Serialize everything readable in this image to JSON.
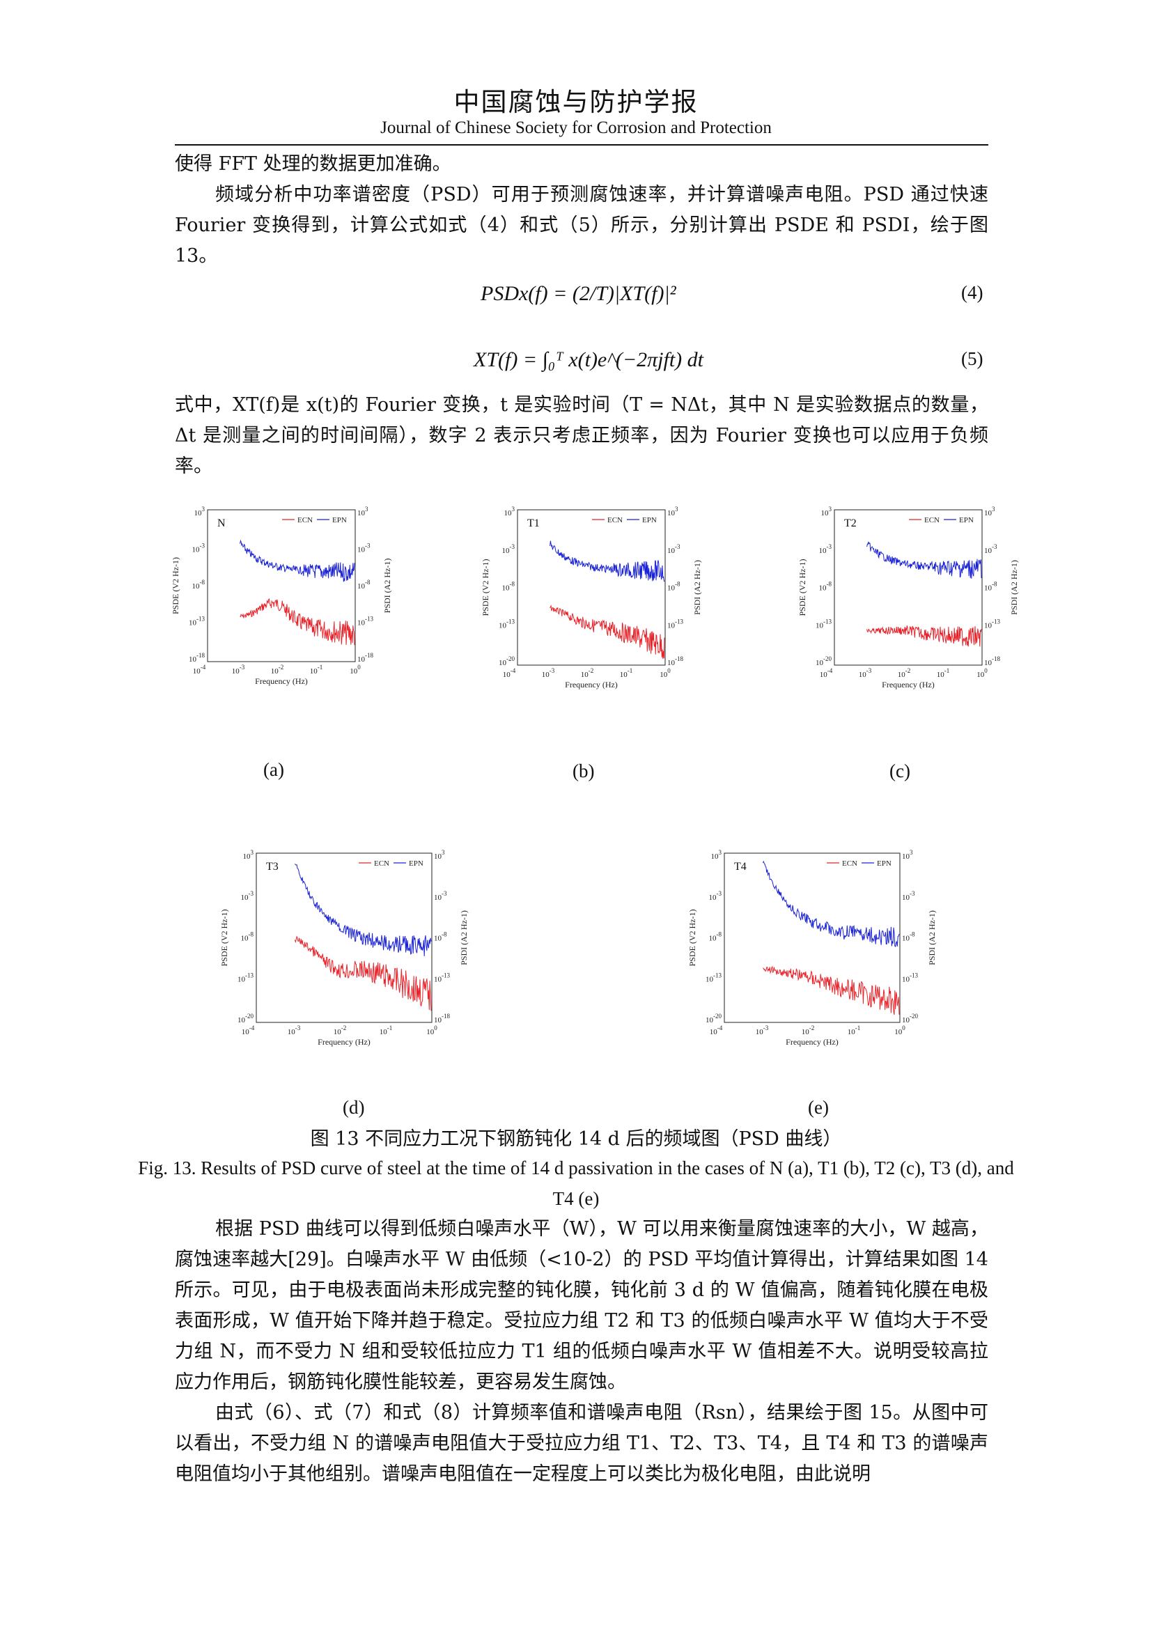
{
  "header": {
    "journal_cn": "中国腐蚀与防护学报",
    "journal_en": "Journal of Chinese Society for Corrosion and Protection"
  },
  "body": {
    "p1": "使得 FFT 处理的数据更加准确。",
    "p2": "频域分析中功率谱密度（PSD）可用于预测腐蚀速率，并计算谱噪声电阻。PSD 通过快速 Fourier 变换得到，计算公式如式（4）和式（5）所示，分别计算出 PSDE 和 PSDI，绘于图 13。",
    "eq4": "PSDx(f) = (2/T)|XT(f)|²",
    "eq4_num": "(4)",
    "eq5": "XT(f) = ∫₀ᵀ x(t)e^(−2πjft) dt",
    "eq5_num": "(5)",
    "p3": "式中，XT(f)是 x(t)的 Fourier 变换，t 是实验时间（T = NΔt，其中 N 是实验数据点的数量，Δt 是测量之间的时间间隔），数字 2 表示只考虑正频率，因为 Fourier 变换也可以应用于负频率。",
    "p4": "根据 PSD 曲线可以得到低频白噪声水平（W），W 可以用来衡量腐蚀速率的大小，W 越高，腐蚀速率越大[29]。白噪声水平 W 由低频（<10-2）的 PSD 平均值计算得出，计算结果如图 14 所示。可见，由于电极表面尚未形成完整的钝化膜，钝化前 3 d 的 W 值偏高，随着钝化膜在电极表面形成，W 值开始下降并趋于稳定。受拉应力组 T2 和 T3 的低频白噪声水平 W 值均大于不受力组 N，而不受力 N 组和受较低拉应力 T1 组的低频白噪声水平 W 值相差不大。说明受较高拉应力作用后，钢筋钝化膜性能较差，更容易发生腐蚀。",
    "p5": "由式（6）、式（7）和式（8）计算频率值和谱噪声电阻（Rsn），结果绘于图 15。从图中可以看出，不受力组 N 的谱噪声电阻值大于受拉应力组 T1、T2、T3、T4，且 T4 和 T3 的谱噪声电阻值均小于其他组别。谱噪声电阻值在一定程度上可以类比为极化电阻，由此说明"
  },
  "figure": {
    "caption_cn": "图 13  不同应力工况下钢筋钝化 14 d 后的频域图（PSD 曲线）",
    "caption_en": "Fig. 13. Results of PSD curve of steel at the time of 14 d passivation in the cases of N (a), T1 (b), T2 (c), T3 (d), and T4 (e)",
    "xlabel": "Frequency (Hz)",
    "ylabel_left": "PSDE (V2 Hz-1)",
    "ylabel_right": "PSDI (A2 Hz-1)",
    "legend": [
      "ECN",
      "EPN"
    ],
    "colors": {
      "ECN": "#e8232a",
      "EPN": "#1a22d6"
    },
    "x_ticks": [
      "10-4",
      "10-3",
      "10-2",
      "10-1",
      "100"
    ],
    "panels": [
      {
        "name": "N",
        "sub": "(a)",
        "yl": [
          "103",
          "10-3",
          "10-8",
          "10-13",
          "10-18"
        ],
        "yr": [
          "103",
          "10-3",
          "10-8",
          "10-13",
          "10-18"
        ]
      },
      {
        "name": "T1",
        "sub": "(b)",
        "yl": [
          "103",
          "10-3",
          "10-8",
          "10-13",
          "10-20"
        ],
        "yr": [
          "103",
          "10-3",
          "10-8",
          "10-13",
          "10-18"
        ]
      },
      {
        "name": "T2",
        "sub": "(c)",
        "yl": [
          "103",
          "10-3",
          "10-8",
          "10-13",
          "10-20"
        ],
        "yr": [
          "103",
          "10-3",
          "10-8",
          "10-13",
          "10-18"
        ]
      },
      {
        "name": "T3",
        "sub": "(d)",
        "yl": [
          "103",
          "10-3",
          "10-8",
          "10-13",
          "10-20"
        ],
        "yr": [
          "103",
          "10-3",
          "10-8",
          "10-13",
          "10-18"
        ]
      },
      {
        "name": "T4",
        "sub": "(e)",
        "yl": [
          "103",
          "10-3",
          "10-8",
          "10-13",
          "10-20"
        ],
        "yr": [
          "103",
          "10-3",
          "10-8",
          "10-13",
          "10-20"
        ]
      }
    ]
  }
}
